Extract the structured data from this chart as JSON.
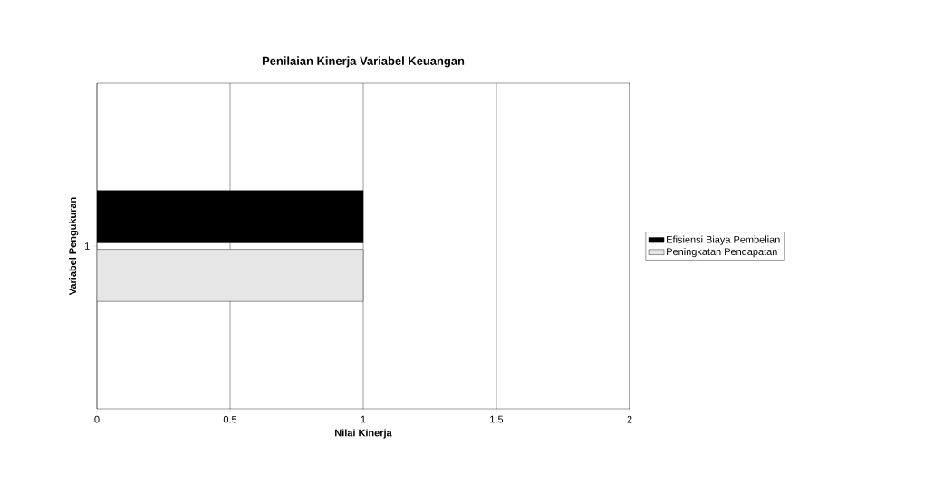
{
  "chart_data": {
    "type": "bar",
    "orientation": "horizontal",
    "title": "Penilaian Kinerja Variabel Keuangan",
    "xlabel": "Nilai Kinerja",
    "ylabel": "Variabel Pengukuran",
    "categories": [
      "1"
    ],
    "series": [
      {
        "name": "Efisiensi Biaya Pembelian",
        "color": "#000000",
        "values": [
          1
        ]
      },
      {
        "name": "Peningkatan Pendapatan",
        "color": "#e6e6e6",
        "values": [
          1
        ]
      }
    ],
    "xlim": [
      0,
      2
    ],
    "xticks": [
      0,
      0.5,
      1,
      1.5,
      2
    ],
    "grid": "x",
    "legend": "right"
  }
}
